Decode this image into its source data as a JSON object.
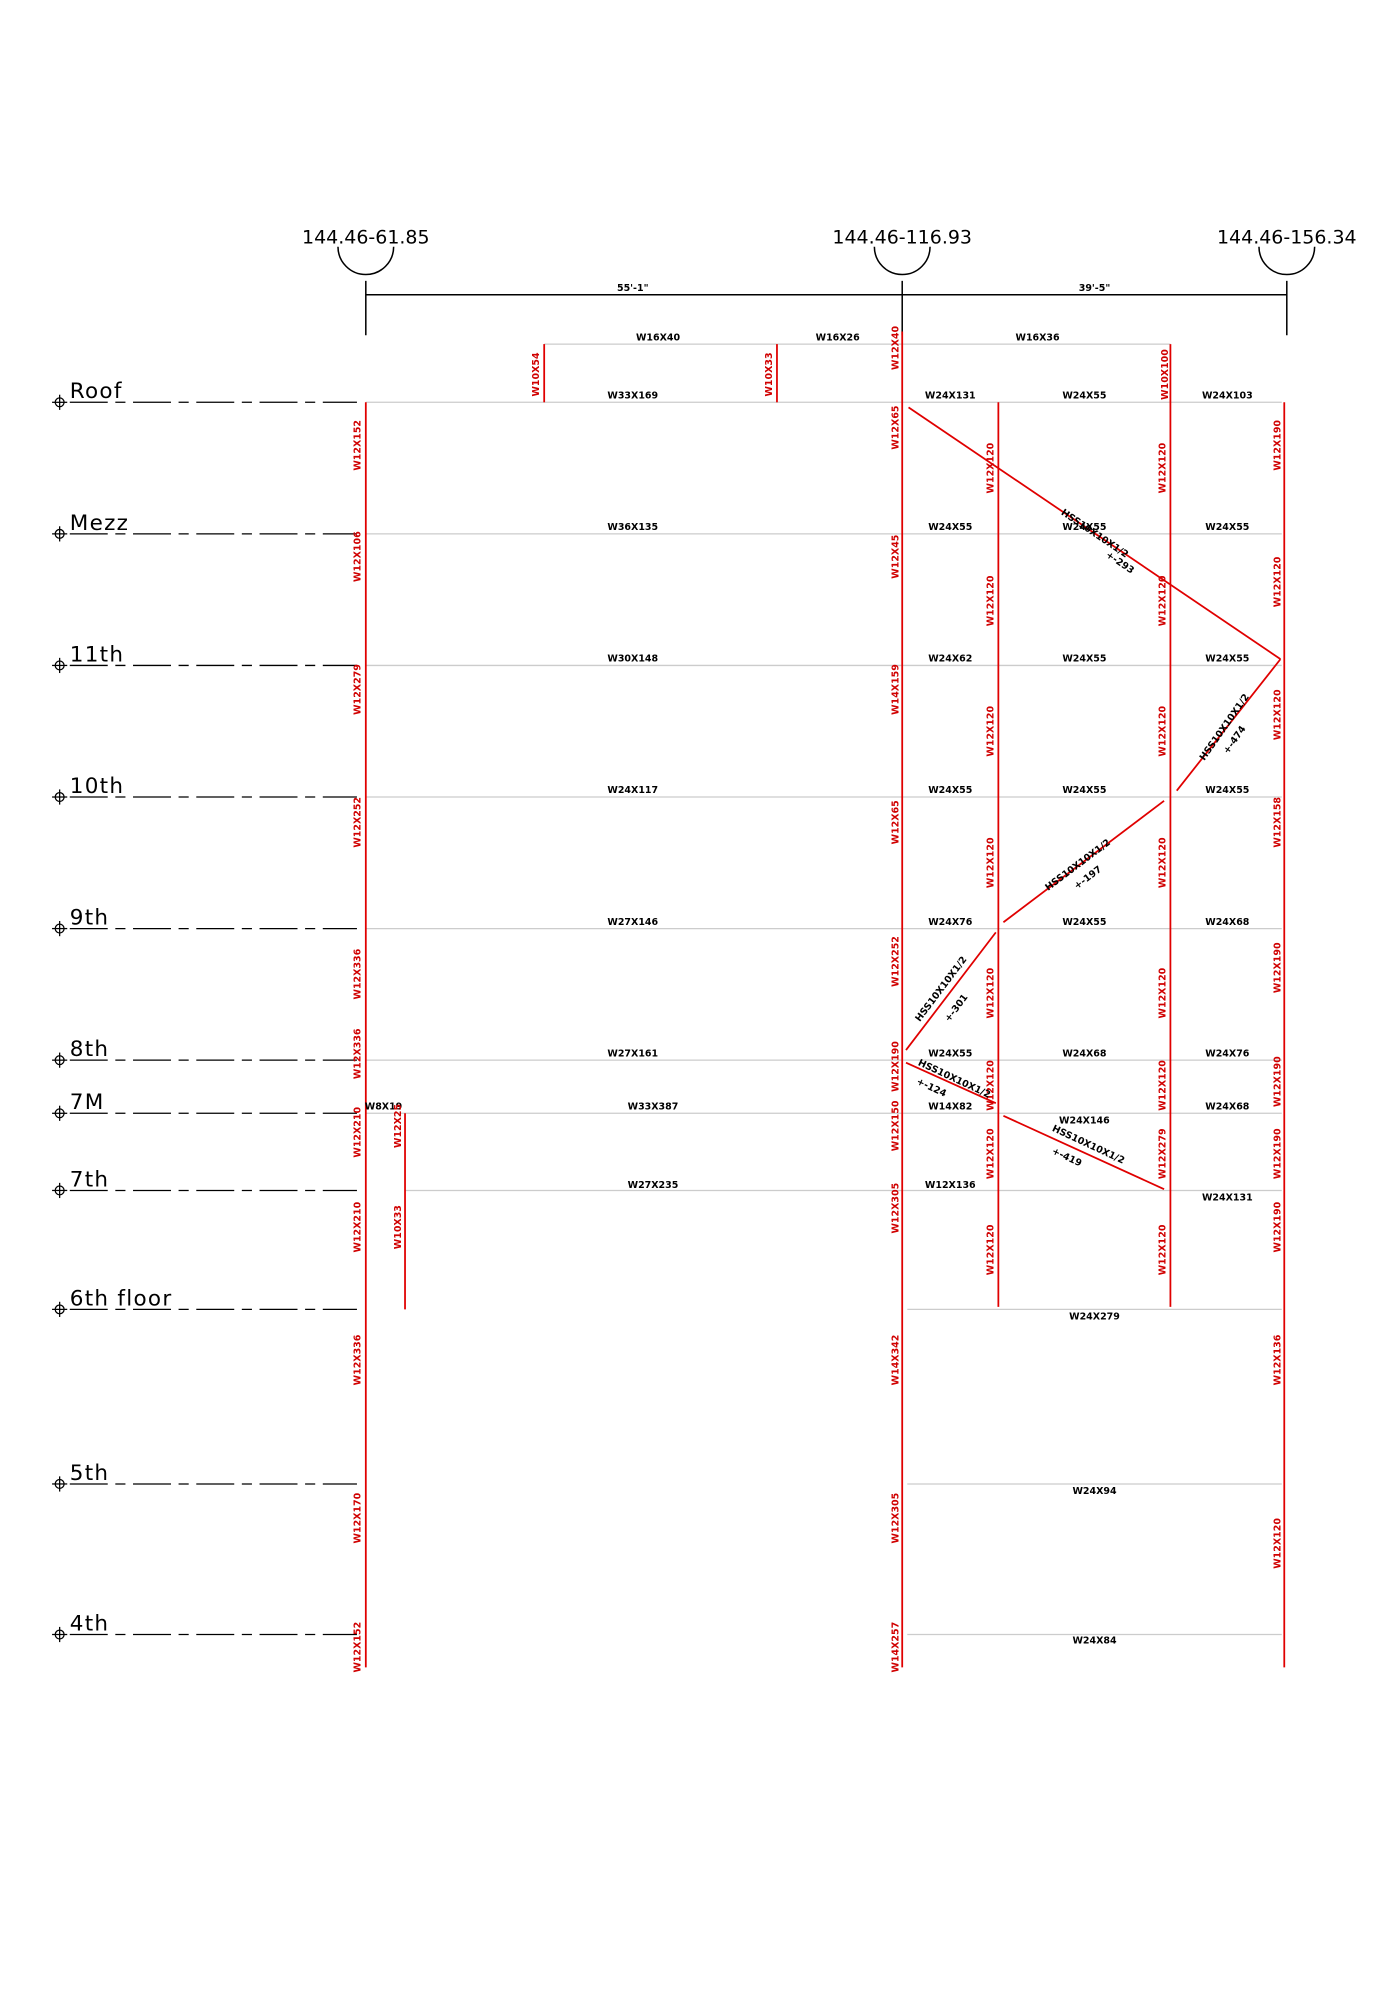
{
  "grid_lines": [
    "144.46-61.85",
    "144.46-116.93",
    "144.46-156.34"
  ],
  "dimensions": [
    "55'-1\"",
    "39'-5\""
  ],
  "levels": [
    "Roof",
    "Mezz",
    "11th",
    "10th",
    "9th",
    "8th",
    "7M",
    "7th",
    "6th floor",
    "5th",
    "4th"
  ],
  "beams": [
    "W16X40",
    "W16X26",
    "W16X36",
    "W33X169",
    "W24X131",
    "W24X55",
    "W24X103",
    "W36X135",
    "W24X55",
    "W24X55",
    "W24X55",
    "W30X148",
    "W24X62",
    "W24X55",
    "W24X55",
    "W24X117",
    "W24X55",
    "W24X55",
    "W24X55",
    "W27X146",
    "W24X76",
    "W24X55",
    "W24X68",
    "W27X161",
    "W24X55",
    "W24X68",
    "W24X76",
    "W8X19",
    "W33X387",
    "W14X82",
    "W24X146",
    "W24X68",
    "W27X235",
    "W12X136",
    "W24X131",
    "W24X279",
    "W24X94",
    "W24X84"
  ],
  "columns": [
    "W12X152",
    "W12X106",
    "W12X279",
    "W12X252",
    "W12X336",
    "W12X336",
    "W12X210",
    "W12X210",
    "W12X336",
    "W12X170",
    "W12X152",
    "W12X25",
    "W10X33",
    "W10X54",
    "W10X33",
    "W12X40",
    "W10X100",
    "W12X65",
    "W12X45",
    "W14X159",
    "W12X65",
    "W12X252",
    "W12X190",
    "W12X150",
    "W12X305",
    "W14X342",
    "W12X305",
    "W14X257",
    "W12X120",
    "W12X120",
    "W12X120",
    "W12X120",
    "W12X120",
    "W12X120",
    "W12X120",
    "W12X120",
    "W12X120",
    "W12X120",
    "W12X120",
    "W12X120",
    "W12X120",
    "W12X120",
    "W12X279",
    "W12X120",
    "W12X190",
    "W12X120",
    "W12X120",
    "W12X158",
    "W12X190",
    "W12X190",
    "W12X190",
    "W12X190",
    "W12X136",
    "W12X120"
  ],
  "braces": [
    {
      "section": "HSS10X10X1/2",
      "force": "+-293"
    },
    {
      "section": "HSS10X10X1/2",
      "force": "+-474"
    },
    {
      "section": "HSS10X10X1/2",
      "force": "+-197"
    },
    {
      "section": "HSS10X10X1/2",
      "force": "+-301"
    },
    {
      "section": "HSS10X10X1/2",
      "force": "+-124"
    },
    {
      "section": "HSS10X10X1/2",
      "force": "+-419"
    }
  ]
}
